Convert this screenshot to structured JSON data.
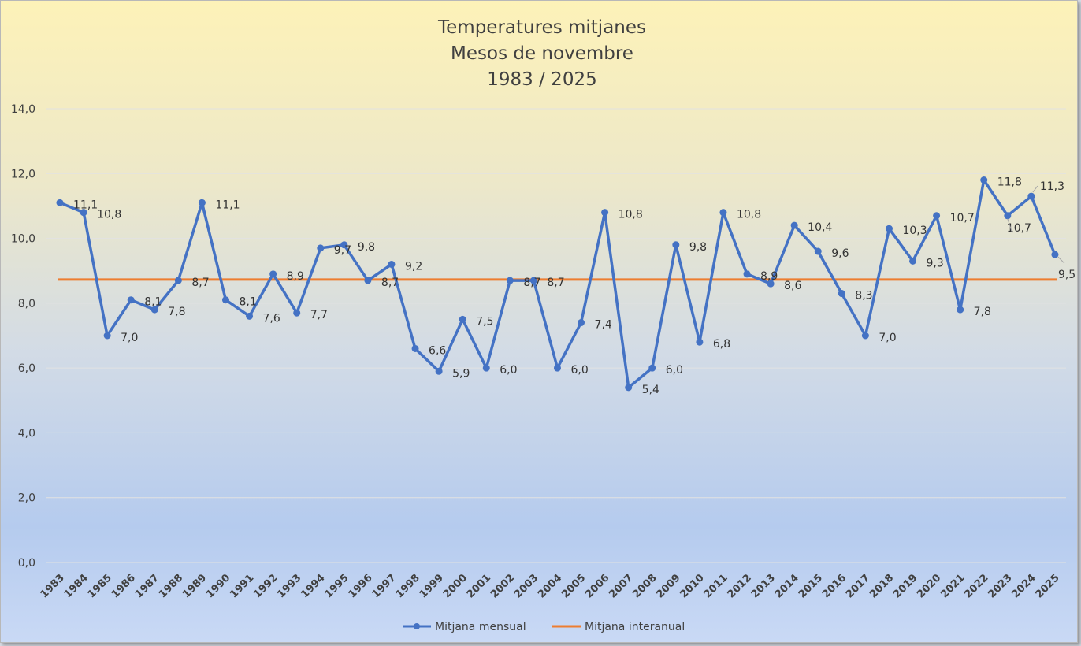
{
  "chart_data": {
    "type": "line",
    "title": "Temperatures mitjanes",
    "subtitle": [
      "Mesos de novembre",
      "1983 / 2025"
    ],
    "xlabel": "",
    "ylabel": "",
    "ylim": [
      0,
      14
    ],
    "yticks": [
      "0,0",
      "2,0",
      "4,0",
      "6,0",
      "8,0",
      "10,0",
      "12,0",
      "14,0"
    ],
    "grid": true,
    "legend_position": "bottom",
    "categories": [
      "1983",
      "1984",
      "1985",
      "1986",
      "1987",
      "1988",
      "1989",
      "1990",
      "1991",
      "1992",
      "1993",
      "1994",
      "1995",
      "1996",
      "1997",
      "1998",
      "1999",
      "2000",
      "2001",
      "2002",
      "2003",
      "2004",
      "2005",
      "2006",
      "2007",
      "2008",
      "2009",
      "2010",
      "2011",
      "2012",
      "2013",
      "2014",
      "2015",
      "2016",
      "2017",
      "2018",
      "2019",
      "2020",
      "2021",
      "2022",
      "2023",
      "2024",
      "2025"
    ],
    "series": [
      {
        "name": "Mitjana mensual",
        "color": "#4472c4",
        "values": [
          11.1,
          10.8,
          7.0,
          8.1,
          7.8,
          8.7,
          11.1,
          8.1,
          7.6,
          8.9,
          7.7,
          9.7,
          9.8,
          8.7,
          9.2,
          6.6,
          5.9,
          7.5,
          6.0,
          8.7,
          8.7,
          6.0,
          7.4,
          10.8,
          5.4,
          6.0,
          9.8,
          6.8,
          10.8,
          8.9,
          8.6,
          10.4,
          9.6,
          8.3,
          7.0,
          10.3,
          9.3,
          10.7,
          7.8,
          11.8,
          10.7,
          11.3,
          9.5
        ],
        "labels": [
          "11,1",
          "10,8",
          "7,0",
          "8,1",
          "7,8",
          "8,7",
          "11,1",
          "8,1",
          "7,6",
          "8,9",
          "7,7",
          "9,7",
          "9,8",
          "8,7",
          "9,2",
          "6,6",
          "5,9",
          "7,5",
          "6,0",
          "8,7",
          "8,7",
          "6,0",
          "7,4",
          "10,8",
          "5,4",
          "6,0",
          "9,8",
          "6,8",
          "10,8",
          "8,9",
          "8,6",
          "10,4",
          "9,6",
          "8,3",
          "7,0",
          "10,3",
          "9,3",
          "10,7",
          "7,8",
          "11,8",
          "10,7",
          "11,3",
          "9,5"
        ]
      },
      {
        "name": "Mitjana interanual",
        "color": "#ed7d31",
        "constant": 8.73
      }
    ]
  }
}
